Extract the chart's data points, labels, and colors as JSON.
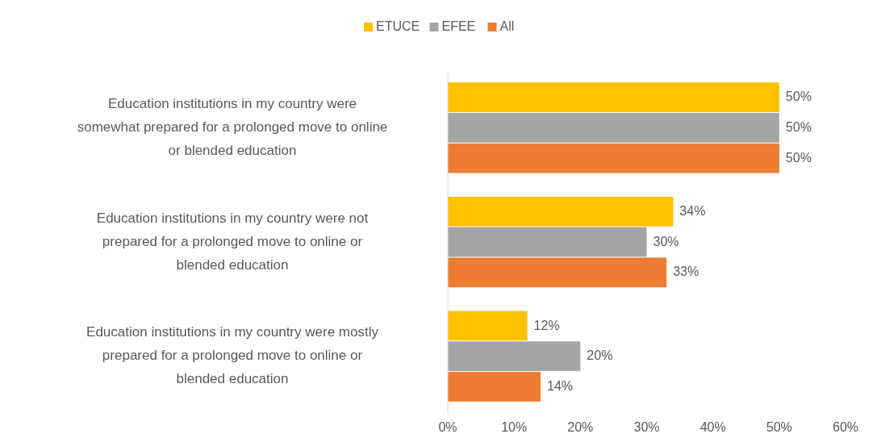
{
  "chart_data": {
    "type": "bar",
    "orientation": "horizontal",
    "categories": [
      "Education institutions in my country were somewhat prepared for a prolonged move to online or blended education",
      "Education institutions in my country were not prepared for a prolonged move to online or blended education",
      "Education institutions in my country were mostly prepared for a prolonged move to online or blended education"
    ],
    "series": [
      {
        "name": "ETUCE",
        "color": "#ffc000",
        "values": [
          50,
          34,
          12
        ],
        "value_labels": [
          "50%",
          "34%",
          "12%"
        ]
      },
      {
        "name": "EFEE",
        "color": "#a5a5a5",
        "values": [
          50,
          30,
          20
        ],
        "value_labels": [
          "50%",
          "30%",
          "20%"
        ]
      },
      {
        "name": "All",
        "color": "#ed7d31",
        "values": [
          50,
          33,
          14
        ],
        "value_labels": [
          "50%",
          "33%",
          "14%"
        ]
      }
    ],
    "xlim": [
      0,
      60
    ],
    "xticks": [
      {
        "value": 0,
        "label": "0%"
      },
      {
        "value": 10,
        "label": "10%"
      },
      {
        "value": 20,
        "label": "20%"
      },
      {
        "value": 30,
        "label": "30%"
      },
      {
        "value": 40,
        "label": "40%"
      },
      {
        "value": 50,
        "label": "50%"
      },
      {
        "value": 60,
        "label": "60%"
      }
    ],
    "grid": false,
    "legend": "top"
  }
}
